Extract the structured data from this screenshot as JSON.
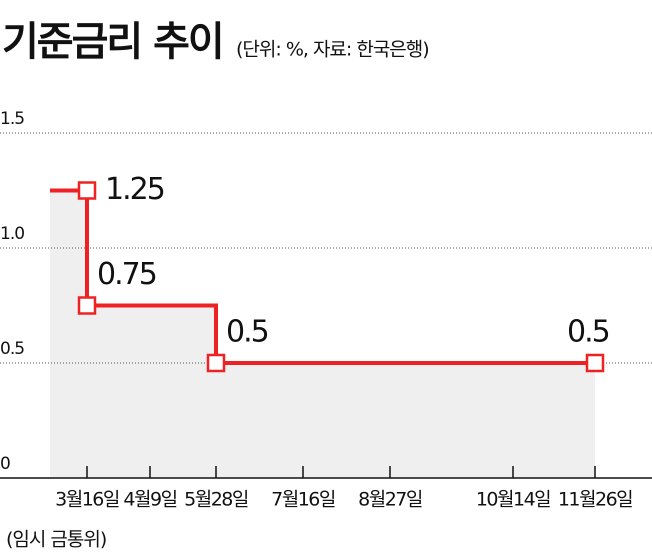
{
  "chart_data": {
    "type": "step",
    "title": "기준금리 추이",
    "subtitle": "(단위: %, 자료: 한국은행)",
    "annotation": "(임시 금통위)",
    "categories": [
      "3월16일",
      "4월9일",
      "5월28일",
      "7월16일",
      "8월27일",
      "10월14일",
      "11월26일"
    ],
    "previous_value": 1.25,
    "values": [
      0.75,
      0.75,
      0.5,
      0.5,
      0.5,
      0.5,
      0.5
    ],
    "value_labels": [
      "0.75",
      null,
      "0.5",
      null,
      null,
      null,
      "0.5"
    ],
    "color": "#ee2222",
    "ylim": [
      0,
      1.5
    ],
    "yticks": [
      0,
      0.5,
      {
        "value": 1,
        "label": "1.0"
      },
      1.5
    ],
    "grid": true
  }
}
